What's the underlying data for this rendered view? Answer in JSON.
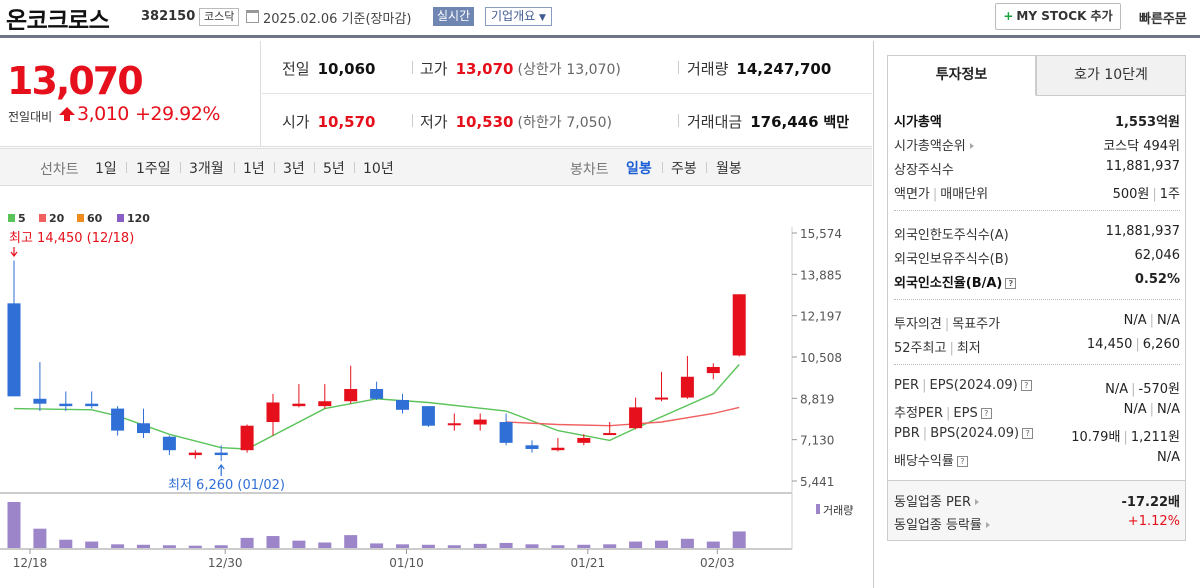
{
  "header": {
    "company_name": "온코크로스",
    "code": "382150",
    "market": "코스닥",
    "date_text": "2025.02.06 기준(장마감)",
    "realtime_label": "실시간",
    "overview_label": "기업개요",
    "mystock_label": "MY STOCK 추가",
    "quick_order_label": "빠른주문"
  },
  "price": {
    "current": "13,070",
    "change_label": "전일대비",
    "change_value": "3,010",
    "change_pct": "+29.92%"
  },
  "quote": {
    "prev_close_label": "전일",
    "prev_close": "10,060",
    "high_label": "고가",
    "high": "13,070",
    "upper_limit_label": "(상한가",
    "upper_limit": "13,070)",
    "volume_label": "거래량",
    "volume": "14,247,700",
    "open_label": "시가",
    "open": "10,570",
    "low_label": "저가",
    "low": "10,530",
    "lower_limit_label": "(하한가",
    "lower_limit": "7,050)",
    "amount_label": "거래대금",
    "amount": "176,446",
    "amount_unit": "백만"
  },
  "period_bar": {
    "line_label": "선차트",
    "line_items": [
      "1일",
      "1주일",
      "3개월",
      "1년",
      "3년",
      "5년",
      "10년"
    ],
    "candle_label": "봉차트",
    "candle_items": [
      "일봉",
      "주봉",
      "월봉"
    ],
    "active_candle": "일봉"
  },
  "right_panel": {
    "tab_info": "투자정보",
    "tab_orderbook": "호가 10단계",
    "market_cap_label": "시가총액",
    "market_cap": "1,553억원",
    "market_cap_rank_label": "시가총액순위",
    "market_cap_rank": "코스닥 494위",
    "shares_label": "상장주식수",
    "shares": "11,881,937",
    "par_label": "액면가",
    "trade_unit_label": "매매단위",
    "par": "500원",
    "trade_unit": "1주",
    "foreign_limit_label": "외국인한도주식수(A)",
    "foreign_limit": "11,881,937",
    "foreign_hold_label": "외국인보유주식수(B)",
    "foreign_hold": "62,046",
    "foreign_ratio_label": "외국인소진율(B/A)",
    "foreign_ratio": "0.52%",
    "opinion_label": "투자의견",
    "target_label": "목표주가",
    "opinion": "N/A",
    "target": "N/A",
    "w52_high_label": "52주최고",
    "w52_low_label": "최저",
    "w52_high": "14,450",
    "w52_low": "6,260",
    "per_label": "PER",
    "eps_label": "EPS(2024.09)",
    "per": "N/A",
    "eps": "-570원",
    "est_per_label": "추정PER",
    "est_eps_label": "EPS",
    "est_per": "N/A",
    "est_eps": "N/A",
    "pbr_label": "PBR",
    "bps_label": "BPS(2024.09)",
    "pbr": "10.79배",
    "bps": "1,211원",
    "dividend_label": "배당수익률",
    "dividend": "N/A",
    "sector_per_label": "동일업종 PER",
    "sector_per": "-17.22배",
    "sector_change_label": "동일업종 등락률",
    "sector_change": "+1.12%"
  },
  "colors": {
    "up": "#e5101b",
    "down": "#2f6fd6",
    "ma5": "#5ac45a",
    "ma20": "#f06060",
    "ma60": "#f08c1c",
    "ma120": "#8a5fc4",
    "volume": "#9c86c9"
  },
  "chart_data": {
    "type": "candlestick",
    "legend": [
      "5",
      "20",
      "60",
      "120"
    ],
    "y_ticks": [
      "15,574",
      "13,885",
      "12,197",
      "10,508",
      "8,819",
      "7,130",
      "5,441"
    ],
    "y_range": [
      5441,
      15574
    ],
    "x_labels": [
      "12/18",
      "12/30",
      "01/10",
      "01/21",
      "02/03"
    ],
    "high_annotation": "최고 14,450 (12/18)",
    "low_annotation": "최저 6,260 (01/02)",
    "volume_label": "거래량",
    "candles": [
      {
        "o": 12700,
        "h": 14450,
        "l": 8900,
        "c": 8900,
        "v": 100
      },
      {
        "o": 8800,
        "h": 10300,
        "l": 8300,
        "c": 8600,
        "v": 42
      },
      {
        "o": 8600,
        "h": 9100,
        "l": 8300,
        "c": 8500,
        "v": 18
      },
      {
        "o": 8600,
        "h": 9100,
        "l": 8400,
        "c": 8500,
        "v": 14
      },
      {
        "o": 8400,
        "h": 8500,
        "l": 7300,
        "c": 7500,
        "v": 8
      },
      {
        "o": 7800,
        "h": 8400,
        "l": 7200,
        "c": 7400,
        "v": 7
      },
      {
        "o": 7250,
        "h": 7300,
        "l": 6500,
        "c": 6700,
        "v": 6
      },
      {
        "o": 6500,
        "h": 6700,
        "l": 6350,
        "c": 6600,
        "v": 5
      },
      {
        "o": 6600,
        "h": 6900,
        "l": 6260,
        "c": 6500,
        "v": 6
      },
      {
        "o": 6700,
        "h": 7750,
        "l": 6600,
        "c": 7700,
        "v": 22
      },
      {
        "o": 7850,
        "h": 9000,
        "l": 7300,
        "c": 8650,
        "v": 26
      },
      {
        "o": 8500,
        "h": 9400,
        "l": 8450,
        "c": 8600,
        "v": 16
      },
      {
        "o": 8500,
        "h": 9400,
        "l": 8400,
        "c": 8700,
        "v": 12
      },
      {
        "o": 8700,
        "h": 10150,
        "l": 8600,
        "c": 9200,
        "v": 28
      },
      {
        "o": 9200,
        "h": 9500,
        "l": 8750,
        "c": 8800,
        "v": 10
      },
      {
        "o": 8750,
        "h": 9000,
        "l": 8200,
        "c": 8350,
        "v": 8
      },
      {
        "o": 8500,
        "h": 8500,
        "l": 7650,
        "c": 7700,
        "v": 7
      },
      {
        "o": 7800,
        "h": 8200,
        "l": 7500,
        "c": 7800,
        "v": 6
      },
      {
        "o": 7750,
        "h": 8200,
        "l": 7500,
        "c": 7950,
        "v": 9
      },
      {
        "o": 7850,
        "h": 8200,
        "l": 6900,
        "c": 7000,
        "v": 11
      },
      {
        "o": 6900,
        "h": 7100,
        "l": 6600,
        "c": 6750,
        "v": 8
      },
      {
        "o": 6700,
        "h": 7200,
        "l": 6650,
        "c": 6800,
        "v": 6
      },
      {
        "o": 7000,
        "h": 7350,
        "l": 6900,
        "c": 7200,
        "v": 7
      },
      {
        "o": 7400,
        "h": 7850,
        "l": 7350,
        "c": 7400,
        "v": 8
      },
      {
        "o": 7600,
        "h": 8850,
        "l": 7550,
        "c": 8450,
        "v": 14
      },
      {
        "o": 8800,
        "h": 9900,
        "l": 8700,
        "c": 8850,
        "v": 16
      },
      {
        "o": 8850,
        "h": 10550,
        "l": 8800,
        "c": 9700,
        "v": 20
      },
      {
        "o": 9850,
        "h": 10250,
        "l": 9600,
        "c": 10100,
        "v": 14
      },
      {
        "o": 10570,
        "h": 13070,
        "l": 10530,
        "c": 13070,
        "v": 36
      }
    ],
    "ma5": [
      [
        0,
        8400
      ],
      [
        3,
        8350
      ],
      [
        4,
        8100
      ],
      [
        6,
        7350
      ],
      [
        8,
        6800
      ],
      [
        9,
        6750
      ],
      [
        12,
        8400
      ],
      [
        14,
        8800
      ],
      [
        16,
        8650
      ],
      [
        19,
        8300
      ],
      [
        21,
        7500
      ],
      [
        23,
        7100
      ],
      [
        24,
        7600
      ],
      [
        27,
        9000
      ],
      [
        28,
        10200
      ]
    ],
    "ma20": [
      [
        19,
        7850
      ],
      [
        21,
        7750
      ],
      [
        23,
        7700
      ],
      [
        25,
        7850
      ],
      [
        27,
        8200
      ],
      [
        28,
        8450
      ]
    ],
    "ma60": [],
    "ma120": []
  }
}
